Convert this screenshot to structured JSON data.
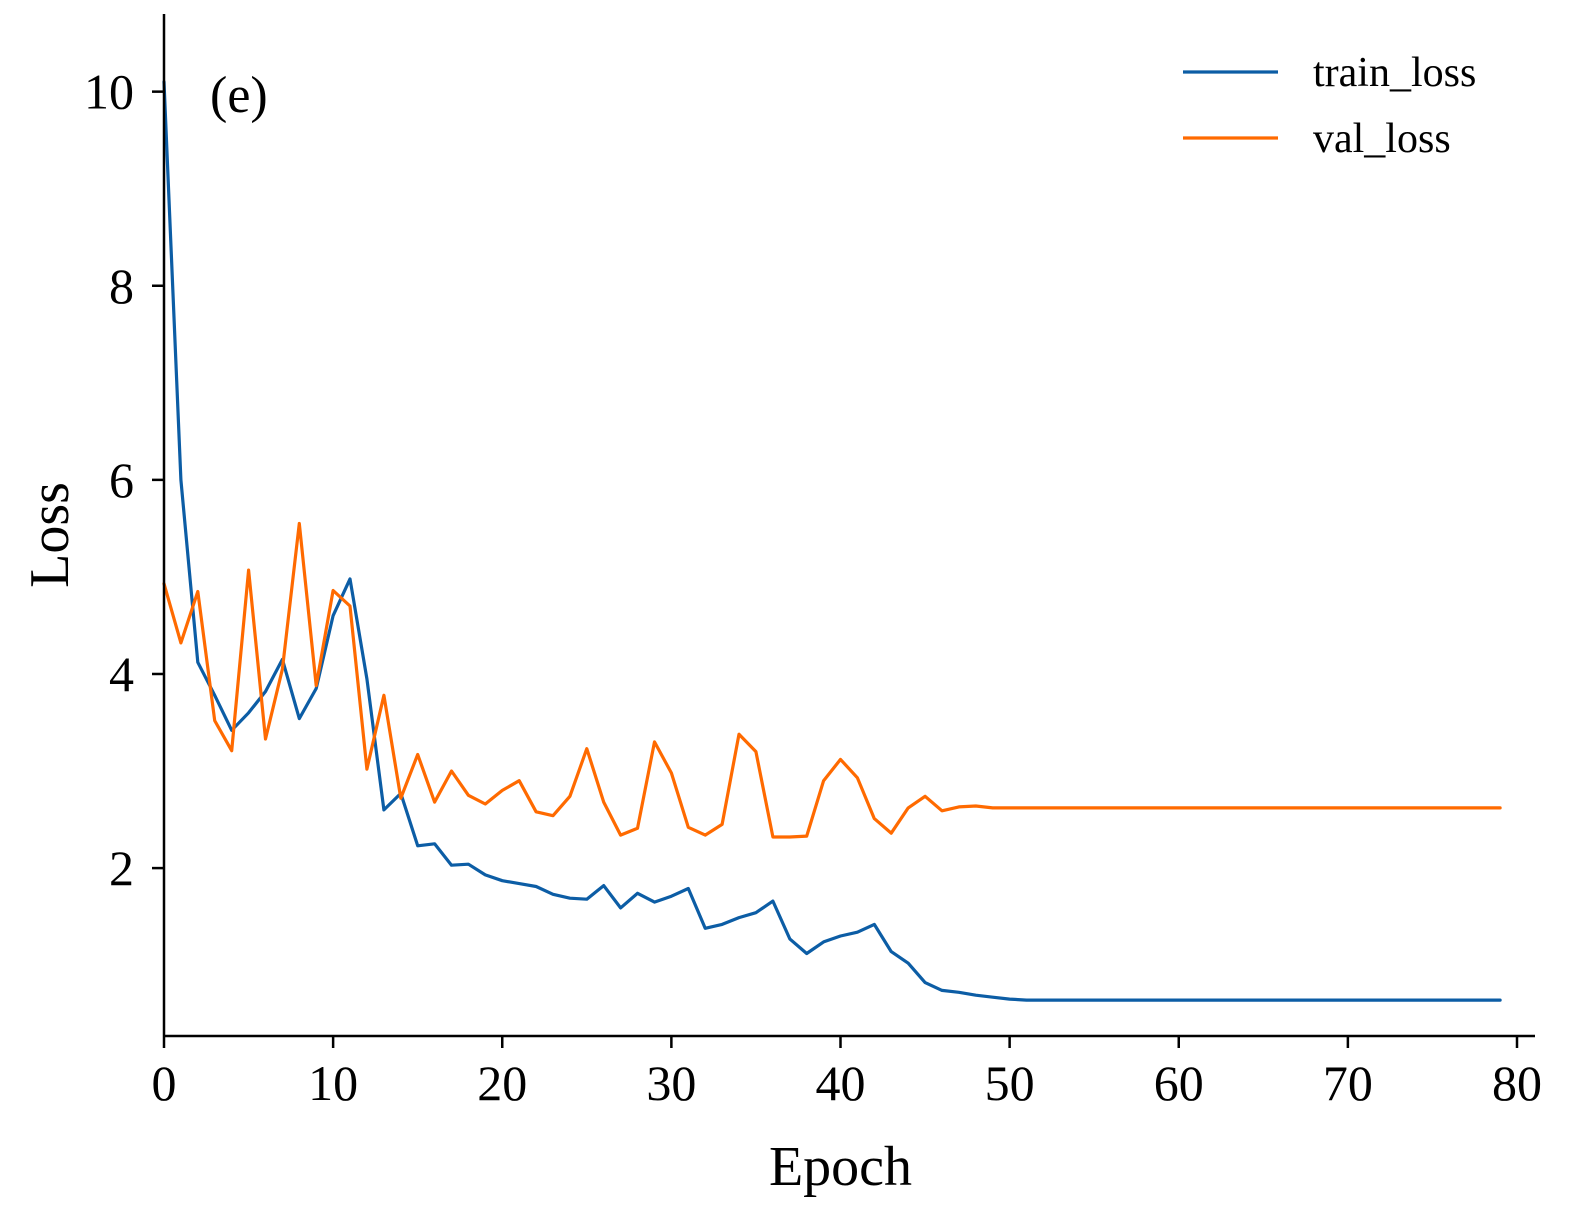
{
  "chart_data": {
    "type": "line",
    "panel_label": "(e)",
    "xlabel": "Epoch",
    "ylabel": "Loss",
    "xlim": [
      0,
      80
    ],
    "ylim": [
      0.27,
      10.8
    ],
    "xticks": [
      0,
      10,
      20,
      30,
      40,
      50,
      60,
      70,
      80
    ],
    "yticks": [
      2,
      4,
      6,
      8,
      10
    ],
    "grid": false,
    "legend_position": "top-right",
    "series": [
      {
        "name": "train_loss",
        "color": "#0c5da5",
        "values": [
          10.1,
          6.0,
          4.12,
          3.78,
          3.42,
          3.6,
          3.82,
          4.15,
          3.54,
          3.85,
          4.6,
          4.98,
          3.95,
          2.6,
          2.77,
          2.23,
          2.25,
          2.03,
          2.04,
          1.93,
          1.87,
          1.84,
          1.81,
          1.73,
          1.69,
          1.68,
          1.82,
          1.59,
          1.74,
          1.65,
          1.71,
          1.79,
          1.38,
          1.42,
          1.49,
          1.54,
          1.66,
          1.27,
          1.12,
          1.24,
          1.3,
          1.34,
          1.42,
          1.14,
          1.02,
          0.82,
          0.74,
          0.72,
          0.69,
          0.67,
          0.65,
          0.64,
          0.64,
          0.64,
          0.64,
          0.64,
          0.64,
          0.64,
          0.64,
          0.64,
          0.64,
          0.64,
          0.64,
          0.64,
          0.64,
          0.64,
          0.64,
          0.64,
          0.64,
          0.64,
          0.64,
          0.64,
          0.64,
          0.64,
          0.64,
          0.64,
          0.64,
          0.64,
          0.64,
          0.64
        ]
      },
      {
        "name": "val_loss",
        "color": "#ff6a00",
        "values": [
          4.93,
          4.32,
          4.85,
          3.52,
          3.21,
          5.07,
          3.33,
          4.05,
          5.55,
          3.88,
          4.86,
          4.7,
          3.02,
          3.78,
          2.72,
          3.17,
          2.68,
          3.0,
          2.75,
          2.66,
          2.8,
          2.9,
          2.58,
          2.54,
          2.74,
          3.23,
          2.68,
          2.34,
          2.41,
          3.3,
          2.98,
          2.42,
          2.34,
          2.45,
          3.38,
          3.2,
          2.32,
          2.32,
          2.33,
          2.9,
          3.12,
          2.93,
          2.51,
          2.36,
          2.62,
          2.74,
          2.59,
          2.63,
          2.64,
          2.62,
          2.62,
          2.62,
          2.62,
          2.62,
          2.62,
          2.62,
          2.62,
          2.62,
          2.62,
          2.62,
          2.62,
          2.62,
          2.62,
          2.62,
          2.62,
          2.62,
          2.62,
          2.62,
          2.62,
          2.62,
          2.62,
          2.62,
          2.62,
          2.62,
          2.62,
          2.62,
          2.62,
          2.62,
          2.62,
          2.62
        ]
      }
    ]
  }
}
